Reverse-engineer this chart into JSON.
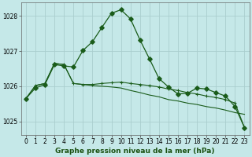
{
  "title": "Graphe pression niveau de la mer (hPa)",
  "background_color": "#c5e8e8",
  "grid_color": "#aacece",
  "line_color": "#1a5c1a",
  "xlim": [
    -0.5,
    23.5
  ],
  "ylim": [
    1024.62,
    1028.38
  ],
  "yticks": [
    1025,
    1026,
    1027,
    1028
  ],
  "xticks": [
    0,
    1,
    2,
    3,
    4,
    5,
    6,
    7,
    8,
    9,
    10,
    11,
    12,
    13,
    14,
    15,
    16,
    17,
    18,
    19,
    20,
    21,
    22,
    23
  ],
  "s1_x": [
    0,
    1,
    2,
    3,
    4,
    5,
    6,
    7,
    8,
    9,
    10,
    11,
    12,
    13,
    14,
    15,
    16,
    17,
    18,
    19,
    20,
    21,
    22,
    23
  ],
  "s1_y": [
    1025.65,
    1025.95,
    1026.05,
    1026.62,
    1026.58,
    1026.55,
    1027.02,
    1027.27,
    1027.68,
    1028.08,
    1028.18,
    1027.92,
    1027.32,
    1026.78,
    1026.22,
    1025.98,
    1025.78,
    1025.8,
    1025.95,
    1025.92,
    1025.82,
    1025.72,
    1025.42,
    1024.82
  ],
  "s2_x": [
    0,
    1,
    2,
    3,
    4,
    5,
    6,
    7,
    8,
    9,
    10,
    11,
    12,
    13,
    14,
    15,
    16,
    17,
    18,
    19,
    20,
    21,
    22,
    23
  ],
  "s2_y": [
    1025.65,
    1026.02,
    1026.08,
    1026.65,
    1026.62,
    1026.08,
    1026.05,
    1026.05,
    1026.08,
    1026.1,
    1026.12,
    1026.08,
    1026.05,
    1026.02,
    1025.98,
    1025.92,
    1025.88,
    1025.82,
    1025.78,
    1025.72,
    1025.68,
    1025.62,
    1025.52,
    1024.82
  ],
  "s3_x": [
    0,
    1,
    2,
    3,
    4,
    5,
    6,
    7,
    8,
    9,
    10,
    11,
    12,
    13,
    14,
    15,
    16,
    17,
    18,
    19,
    20,
    21,
    22,
    23
  ],
  "s3_y": [
    1025.65,
    1026.02,
    1026.08,
    1026.65,
    1026.62,
    1026.08,
    1026.05,
    1026.02,
    1026.0,
    1025.98,
    1025.95,
    1025.88,
    1025.82,
    1025.75,
    1025.7,
    1025.62,
    1025.58,
    1025.52,
    1025.48,
    1025.42,
    1025.38,
    1025.32,
    1025.25,
    1025.2
  ],
  "tick_fontsize": 5.5,
  "title_fontsize": 6.5
}
